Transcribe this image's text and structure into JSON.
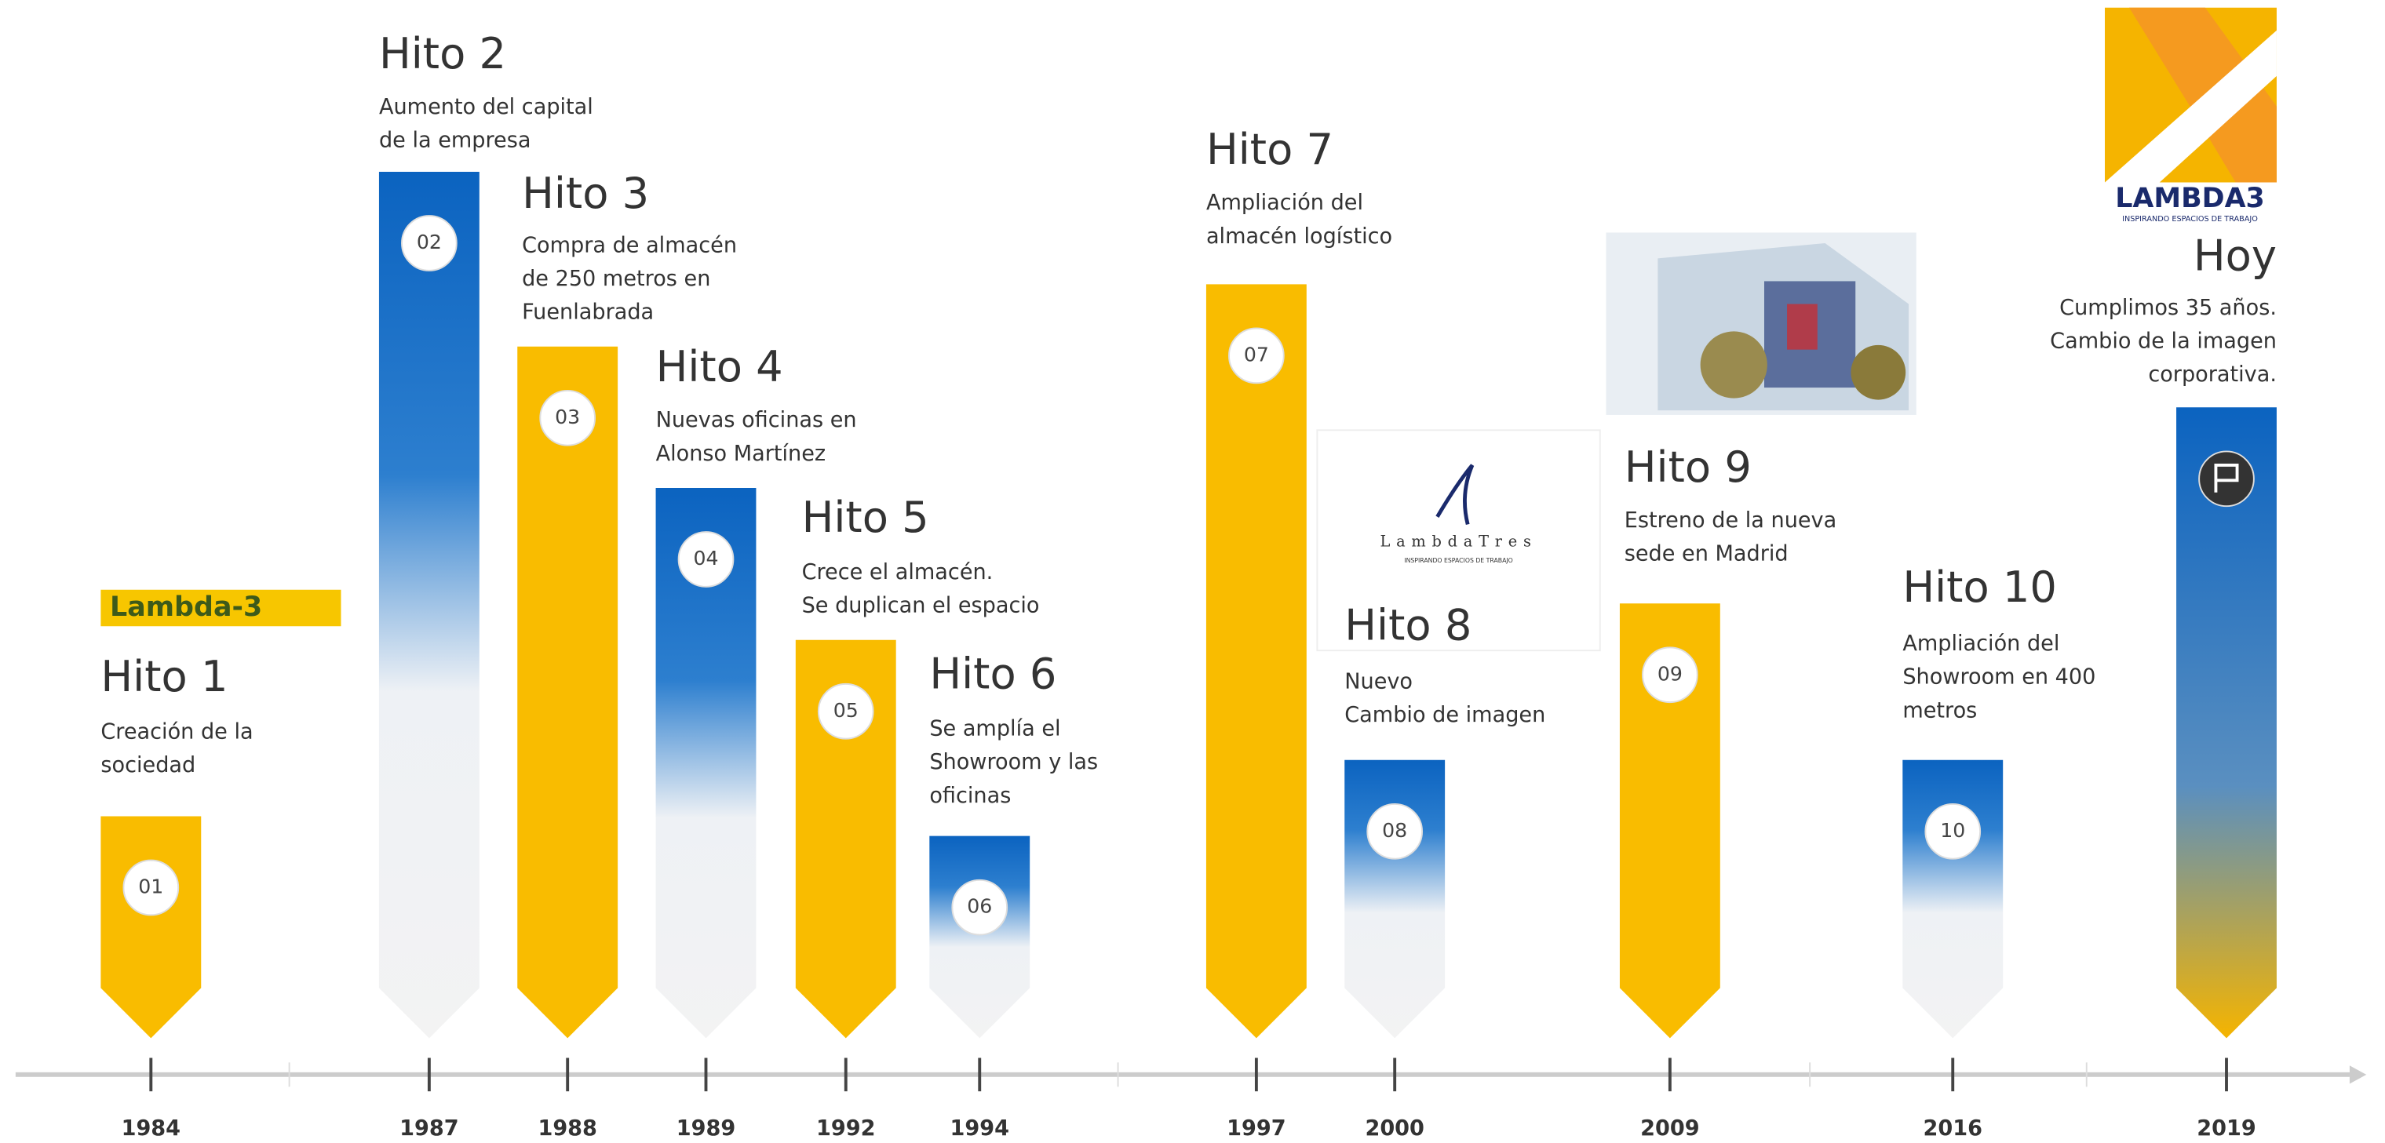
{
  "milestones": [
    {
      "title": "Hito 1",
      "number": "01",
      "text": [
        "Creación de la",
        "sociedad"
      ],
      "year": "1984"
    },
    {
      "title": "Hito 2",
      "number": "02",
      "text": [
        "Aumento del capital",
        "de la empresa"
      ],
      "year": "1987"
    },
    {
      "title": "Hito 3",
      "number": "03",
      "text": [
        "Compra de almacén",
        "de 250 metros en",
        "Fuenlabrada"
      ],
      "year": "1988"
    },
    {
      "title": "Hito 4",
      "number": "04",
      "text": [
        "Nuevas oficinas en",
        "Alonso Martínez"
      ],
      "year": "1989"
    },
    {
      "title": "Hito 5",
      "number": "05",
      "text": [
        "Crece el almacén.",
        "Se duplican el espacio"
      ],
      "year": "1992"
    },
    {
      "title": "Hito 6",
      "number": "06",
      "text": [
        "Se amplía el",
        "Showroom y las",
        "oficinas"
      ],
      "year": "1994"
    },
    {
      "title": "Hito 7",
      "number": "07",
      "text": [
        "Ampliación del",
        "almacén logístico"
      ],
      "year": "1997"
    },
    {
      "title": "Hito 8",
      "number": "08",
      "text": [
        "Nuevo",
        "Cambio de imagen"
      ],
      "year": "2000"
    },
    {
      "title": "Hito 9",
      "number": "09",
      "text": [
        "Estreno de la nueva",
        "sede en Madrid"
      ],
      "year": "2009"
    },
    {
      "title": "Hito 10",
      "number": "10",
      "text": [
        "Ampliación del",
        "Showroom en 400",
        "metros"
      ],
      "year": "2016"
    },
    {
      "title": "Hoy",
      "text": [
        "Cumplimos 35 años.",
        "Cambio de la imagen",
        "corporativa."
      ],
      "year": "2019"
    }
  ],
  "logos": {
    "old": "Lambda-3",
    "mid": "LambdaTres",
    "mid_tagline": "INSPIRANDO ESPACIOS DE TRABAJO",
    "new": "LAMBDA3",
    "new_tagline": "INSPIRANDO ESPACIOS DE TRABAJO"
  }
}
